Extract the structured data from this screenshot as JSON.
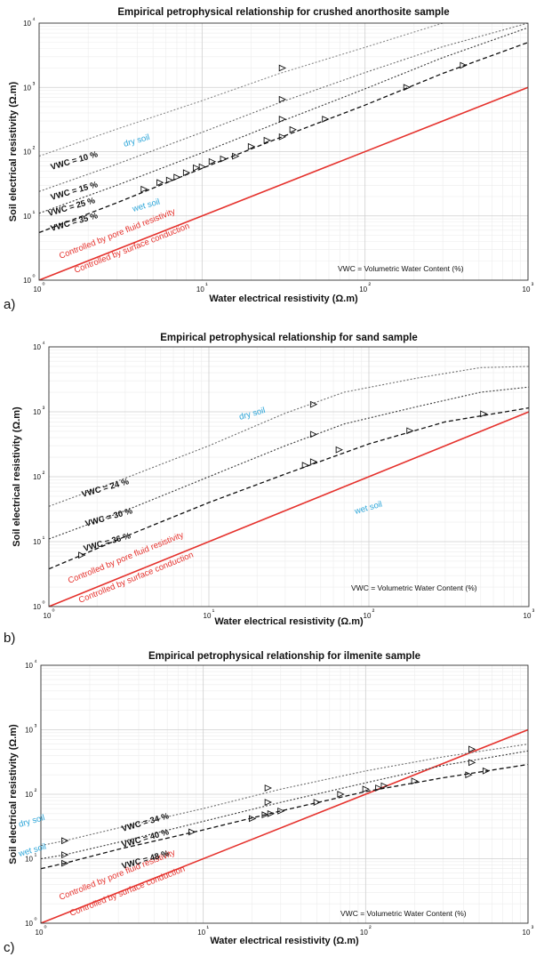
{
  "chart_data": [
    {
      "type": "line",
      "panel_label": "a)",
      "title": "Empirical petrophysical relationship for crushed anorthosite sample",
      "xlabel": "Water electrical resistivity (Ω.m)",
      "ylabel": "Soil electrical resistivity (Ω.m)",
      "xscale": "log",
      "yscale": "log",
      "xlim": [
        1,
        1000
      ],
      "ylim": [
        1,
        10000
      ],
      "x_ticks": [
        "10⁰",
        "10¹",
        "10²",
        "10³"
      ],
      "y_ticks": [
        "10⁰",
        "10¹",
        "10²",
        "10³",
        "10⁴"
      ],
      "grid": true,
      "note": "VWC = Volumetric Water Content (%)",
      "region_labels": {
        "dry": "dry soil",
        "wet": "wet soil"
      },
      "reference_line": {
        "label_top": "Controlled by pore fluid resistivity",
        "label_bottom": "Controlled by surface conduction",
        "x": [
          1,
          1000
        ],
        "y": [
          1,
          1000
        ],
        "color": "#e5322d"
      },
      "series": [
        {
          "name": "VWC = 10 %",
          "style": "dotted",
          "color": "#8a8a8a",
          "x": [
            1,
            3,
            10,
            30,
            100,
            300,
            1000
          ],
          "y": [
            85,
            225,
            620,
            1650,
            4200,
            10000,
            20000
          ],
          "markers": {
            "x": [
              31
            ],
            "y": [
              2000
            ]
          }
        },
        {
          "name": "VWC = 15 %",
          "style": "dotted",
          "color": "#6e6e6e",
          "x": [
            1,
            3,
            10,
            30,
            100,
            300,
            1000
          ],
          "y": [
            24,
            64,
            200,
            580,
            1700,
            4300,
            10000
          ],
          "markers": {
            "x": [
              31
            ],
            "y": [
              650
            ]
          }
        },
        {
          "name": "VWC = 25 %",
          "style": "dotted",
          "color": "#3a3a3a",
          "x": [
            1,
            3,
            10,
            30,
            100,
            300,
            1000
          ],
          "y": [
            11,
            30,
            96,
            290,
            950,
            2900,
            8500
          ],
          "markers": {
            "x": [
              31
            ],
            "y": [
              320
            ]
          }
        },
        {
          "name": "VWC = 35 %",
          "style": "dashed",
          "color": "#111111",
          "x": [
            1,
            3,
            10,
            30,
            100,
            300,
            1000
          ],
          "y": [
            5.5,
            16,
            55,
            165,
            530,
            1650,
            5000
          ],
          "markers": {
            "x": [
              4.4,
              5.5,
              6.3,
              7,
              8,
              9.2,
              10,
              11.5,
              13.5,
              16,
              20,
              25,
              31,
              36,
              57,
              180,
              400
            ],
            "y": [
              26,
              33,
              36,
              40,
              47,
              56,
              58,
              70,
              77,
              85,
              120,
              150,
              170,
              220,
              320,
              1000,
              2200
            ]
          }
        }
      ]
    },
    {
      "type": "line",
      "panel_label": "b)",
      "title": "Empirical petrophysical relationship for sand sample",
      "xlabel": "Water electrical resistivity (Ω.m)",
      "ylabel": "Soil electrical resistivity (Ω.m)",
      "xscale": "log",
      "yscale": "log",
      "xlim": [
        1,
        1000
      ],
      "ylim": [
        1,
        10000
      ],
      "x_ticks": [
        "10⁰",
        "10¹",
        "10²",
        "10³"
      ],
      "y_ticks": [
        "10⁰",
        "10¹",
        "10²",
        "10³",
        "10⁴"
      ],
      "grid": true,
      "note": "VWC = Volumetric Water Content (%)",
      "region_labels": {
        "dry": "dry soil",
        "wet": "wet soil"
      },
      "reference_line": {
        "label_top": "Controlled by pore fluid resistivity",
        "label_bottom": "Controlled by surface conduction",
        "x": [
          1,
          1000
        ],
        "y": [
          1,
          1000
        ],
        "color": "#e5322d"
      },
      "series": [
        {
          "name": "VWC = 24 %",
          "style": "dotted",
          "color": "#6e6e6e",
          "x": [
            1,
            3,
            10,
            30,
            70,
            200,
            500,
            1000
          ],
          "y": [
            35,
            95,
            300,
            950,
            2000,
            3300,
            4800,
            5000
          ],
          "markers": {
            "x": [
              45
            ],
            "y": [
              1300
            ]
          }
        },
        {
          "name": "VWC = 30 %",
          "style": "dotted",
          "color": "#3a3a3a",
          "x": [
            1,
            3,
            10,
            30,
            70,
            200,
            500,
            1000
          ],
          "y": [
            11,
            30,
            100,
            300,
            650,
            1200,
            2000,
            2400
          ],
          "markers": {
            "x": [
              45
            ],
            "y": [
              450
            ]
          }
        },
        {
          "name": "VWC = 36 %",
          "style": "dashed",
          "color": "#111111",
          "x": [
            1,
            1.6,
            3,
            10,
            30,
            100,
            300,
            1000
          ],
          "y": [
            3.8,
            6.2,
            12,
            40,
            110,
            320,
            700,
            1150
          ],
          "markers": {
            "x": [
              1.6,
              40,
              45,
              65,
              180,
              520
            ],
            "y": [
              6.2,
              150,
              170,
              260,
              510,
              930
            ]
          }
        }
      ]
    },
    {
      "type": "line",
      "panel_label": "c)",
      "title": "Empirical petrophysical relationship for ilmenite sample",
      "xlabel": "Water electrical resistivity (Ω.m)",
      "ylabel": "Soil electrical resistivity (Ω.m)",
      "xscale": "log",
      "yscale": "log",
      "xlim": [
        1,
        1000
      ],
      "ylim": [
        1,
        10000
      ],
      "x_ticks": [
        "10⁰",
        "10¹",
        "10²",
        "10³"
      ],
      "y_ticks": [
        "10⁰",
        "10¹",
        "10²",
        "10³",
        "10⁴"
      ],
      "grid": true,
      "note": "VWC = Volumetric Water Content (%)",
      "region_labels": {
        "dry": "dry soil",
        "wet": "wet soil"
      },
      "reference_line": {
        "label_top": "Controlled by pore fluid resistivity",
        "label_bottom": "Controlled by surface conduction",
        "x": [
          1,
          1000
        ],
        "y": [
          1,
          1000
        ],
        "color": "#e5322d"
      },
      "series": [
        {
          "name": "VWC = 34 %",
          "style": "dotted",
          "color": "#6e6e6e",
          "x": [
            1,
            1.4,
            3,
            10,
            30,
            100,
            300,
            1000
          ],
          "y": [
            16,
            19,
            30,
            60,
            120,
            230,
            380,
            600
          ],
          "markers": {
            "x": [
              1.4,
              25,
              450
            ],
            "y": [
              19,
              125,
              500
            ]
          }
        },
        {
          "name": "VWC = 40 %",
          "style": "dotted",
          "color": "#3a3a3a",
          "x": [
            1,
            1.4,
            3,
            10,
            30,
            100,
            300,
            1000
          ],
          "y": [
            10,
            11.5,
            18,
            38,
            75,
            150,
            280,
            470
          ],
          "markers": {
            "x": [
              1.4,
              25,
              450
            ],
            "y": [
              11.5,
              75,
              310
            ]
          }
        },
        {
          "name": "VWC = 48 %",
          "style": "dashed",
          "color": "#111111",
          "x": [
            1,
            1.4,
            3,
            10,
            30,
            100,
            300,
            1000
          ],
          "y": [
            7,
            8.5,
            14,
            28,
            55,
            110,
            180,
            290
          ],
          "markers": {
            "x": [
              1.4,
              8.5,
              20,
              24,
              26,
              30,
              50,
              70,
              100,
              120,
              130,
              200,
              430,
              550
            ],
            "y": [
              8.5,
              26,
              42,
              48,
              50,
              55,
              75,
              100,
              120,
              125,
              135,
              160,
              200,
              230
            ]
          }
        }
      ]
    }
  ]
}
